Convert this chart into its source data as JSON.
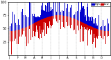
{
  "background_color": "#ffffff",
  "plot_bg_color": "#ffffff",
  "bar_color_high": "#0000cc",
  "bar_color_low": "#cc0000",
  "legend_label_blue": "Hgh",
  "legend_label_red": "Low",
  "ylim": [
    0,
    100
  ],
  "ylabel_ticks": [
    25,
    50,
    75,
    100
  ],
  "ylabel_fontsize": 3.5,
  "xlabel_fontsize": 2.8,
  "num_points": 365,
  "seed": 42,
  "bar_width": 0.7,
  "month_starts": [
    0,
    31,
    59,
    90,
    120,
    151,
    181,
    212,
    243,
    273,
    304,
    334
  ],
  "month_labels": [
    "J",
    "F",
    "M",
    "A",
    "M",
    "J",
    "J",
    "A",
    "S",
    "O",
    "N",
    "D"
  ]
}
